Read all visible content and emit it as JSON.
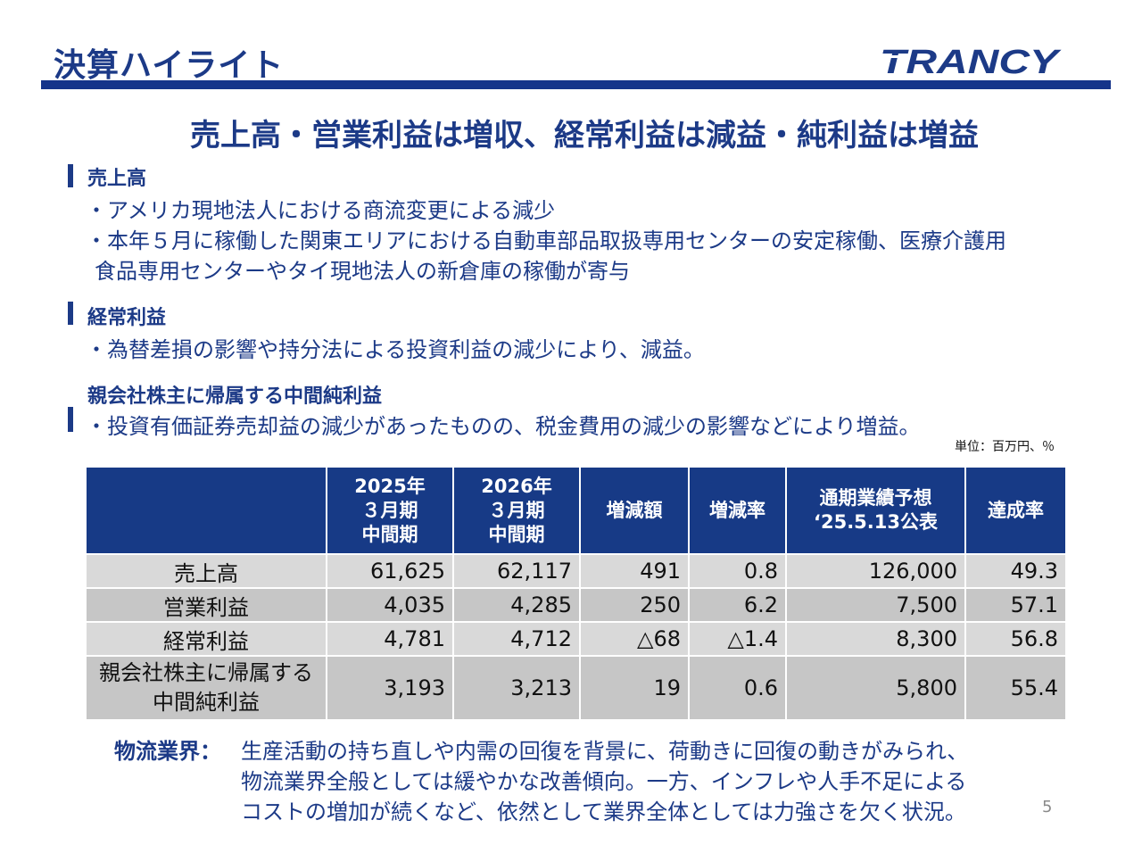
{
  "header": {
    "title": "決算ハイライト",
    "logo_text": "TRANCY"
  },
  "headline": "売上高・営業利益は増収、経常利益は減益・純利益は増益",
  "sections": [
    {
      "heading": "売上高",
      "bullets": [
        "・アメリカ現地法人における商流変更による減少",
        "・本年５月に稼働した関東エリアにおける自動車部品取扱専用センターの安定稼働、医療介護用",
        "食品専用センターやタイ現地法人の新倉庫の稼働が寄与"
      ]
    },
    {
      "heading": "経常利益",
      "bullets": [
        "・為替差損の影響や持分法による投資利益の減少により、減益。"
      ]
    },
    {
      "heading": "親会社株主に帰属する中間純利益",
      "bullets": [
        "・投資有価証券売却益の減少があったものの、税金費用の減少の影響などにより増益。"
      ]
    }
  ],
  "unit_note": "単位：百万円、％",
  "table": {
    "headers": [
      "",
      "2025年\n３月期\n中間期",
      "2026年\n３月期\n中間期",
      "増減額",
      "増減率",
      "通期業績予想\n‘25.5.13公表",
      "達成率"
    ],
    "rows": [
      [
        "売上高",
        "61,625",
        "62,117",
        "491",
        "0.8",
        "126,000",
        "49.3"
      ],
      [
        "営業利益",
        "4,035",
        "4,285",
        "250",
        "6.2",
        "7,500",
        "57.1"
      ],
      [
        "経常利益",
        "4,781",
        "4,712",
        "△68",
        "△1.4",
        "8,300",
        "56.8"
      ],
      [
        "親会社株主に帰属する\n中間純利益",
        "3,193",
        "3,213",
        "19",
        "0.6",
        "5,800",
        "55.4"
      ]
    ]
  },
  "industry": {
    "label": "物流業界：",
    "lines": [
      "生産活動の持ち直しや内需の回復を背景に、荷動きに回復の動きがみられ、",
      "物流業界全般としては緩やかな改善傾向。一方、インフレや人手不足による",
      "コストの増加が続くなど、依然として業界全体としては力強さを欠く状況。"
    ]
  },
  "page_number": "5",
  "colors": {
    "navy": "#1c3a87",
    "table_header": "#173a86",
    "row_light": "#d9d9d9",
    "row_dark": "#c6c6c6"
  }
}
